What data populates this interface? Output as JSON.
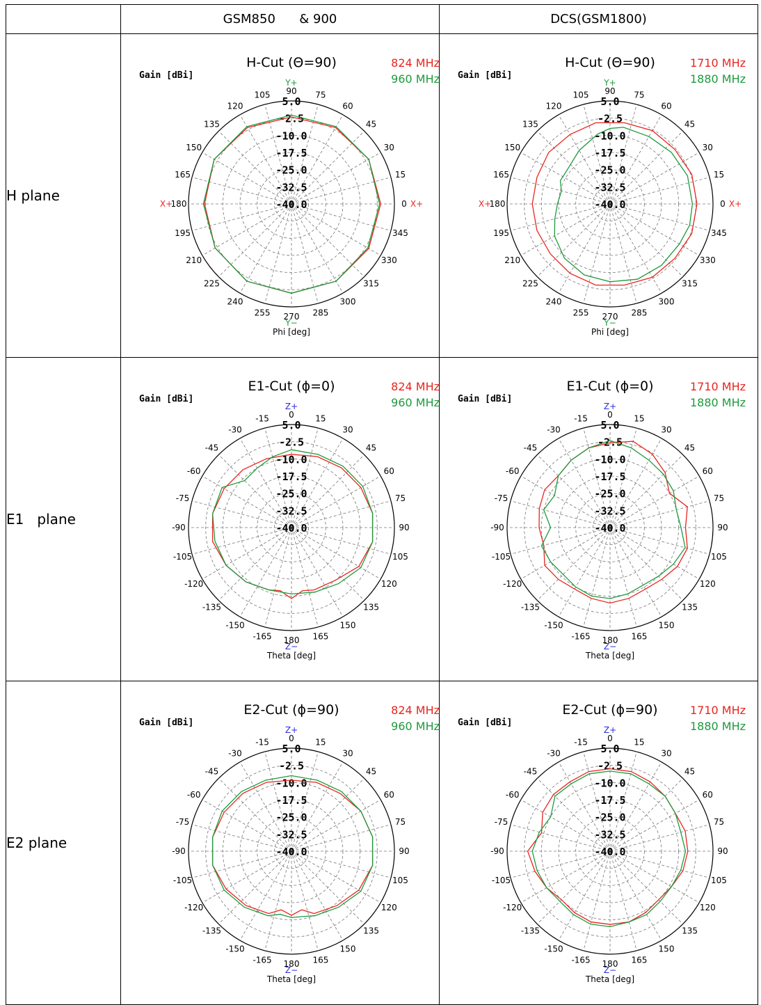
{
  "headers": [
    "",
    "GSM850      & 900",
    "DCS(GSM1800)"
  ],
  "rows": [
    {
      "label": "H plane"
    },
    {
      "label": "E1   plane"
    },
    {
      "label": "E2 plane"
    }
  ],
  "colors": {
    "red": "#e8241e",
    "green": "#1e9a3c",
    "blue": "#2a2ae0",
    "grid": "#777777"
  },
  "chart_data": [
    {
      "type": "polar-line",
      "title": "H-Cut (Θ=90)",
      "gain_label": "Gain [dBi]",
      "axis_label": "Phi [deg]",
      "top_marker": "Y+",
      "bottom_marker": "Y−",
      "left_marker": "X+",
      "right_marker": "X+",
      "top_marker_color": "#1e9a3c",
      "side_marker_color": "#e8241e",
      "angle_labels": [
        "0",
        "15",
        "30",
        "45",
        "60",
        "75",
        "90",
        "105",
        "120",
        "135",
        "150",
        "165",
        "180",
        "195",
        "210",
        "225",
        "240",
        "255",
        "270",
        "285",
        "300",
        "315",
        "330",
        "345"
      ],
      "angle_mode": "phi",
      "radial_ticks": [
        "5.0",
        "-2.5",
        "-10.0",
        "-17.5",
        "-25.0",
        "-32.5",
        "-40.0"
      ],
      "rlim": [
        -40,
        5
      ],
      "series": [
        {
          "name": "824 MHz",
          "color": "#e8241e",
          "angles": [
            0,
            30,
            60,
            90,
            120,
            150,
            180,
            210,
            240,
            270,
            300,
            330,
            360
          ],
          "values": [
            -1,
            -1,
            -1.5,
            -2,
            -1.5,
            -1,
            -2,
            -1.5,
            -1,
            -1,
            -1,
            -1,
            -1
          ]
        },
        {
          "name": "960 MHz",
          "color": "#1e9a3c",
          "angles": [
            0,
            30,
            60,
            90,
            120,
            150,
            180,
            210,
            240,
            270,
            300,
            330,
            360
          ],
          "values": [
            -1.5,
            -1,
            -1,
            -1.2,
            -1,
            -1,
            -1.5,
            -1.5,
            -1,
            -1,
            -1,
            -1.5,
            -1.5
          ]
        }
      ]
    },
    {
      "type": "polar-line",
      "title": "H-Cut (Θ=90)",
      "gain_label": "Gain [dBi]",
      "axis_label": "Phi [deg]",
      "top_marker": "Y+",
      "bottom_marker": "Y−",
      "left_marker": "X+",
      "right_marker": "X+",
      "top_marker_color": "#1e9a3c",
      "side_marker_color": "#e8241e",
      "angle_labels": [
        "0",
        "15",
        "30",
        "45",
        "60",
        "75",
        "90",
        "105",
        "120",
        "135",
        "150",
        "165",
        "180",
        "195",
        "210",
        "225",
        "240",
        "255",
        "270",
        "285",
        "300",
        "315",
        "330",
        "345"
      ],
      "angle_mode": "phi",
      "radial_ticks": [
        "5.0",
        "-2.5",
        "-10.0",
        "-17.5",
        "-25.0",
        "-32.5",
        "-40.0"
      ],
      "rlim": [
        -40,
        5
      ],
      "series": [
        {
          "name": "1710 MHz",
          "color": "#e8241e",
          "angles": [
            0,
            20,
            40,
            60,
            80,
            100,
            120,
            140,
            160,
            180,
            200,
            220,
            240,
            260,
            280,
            300,
            320,
            340,
            360
          ],
          "values": [
            -2,
            -2,
            -3,
            -3,
            -4,
            -4,
            -5,
            -5,
            -6,
            -6,
            -6,
            -6,
            -5,
            -4,
            -4,
            -3,
            -3,
            -2,
            -2
          ]
        },
        {
          "name": "1880 MHz",
          "color": "#1e9a3c",
          "angles": [
            0,
            20,
            40,
            60,
            80,
            90,
            100,
            120,
            140,
            155,
            165,
            180,
            195,
            210,
            230,
            250,
            270,
            290,
            310,
            330,
            345,
            360
          ],
          "values": [
            -4,
            -4,
            -5,
            -6,
            -6,
            -7,
            -9,
            -13,
            -16,
            -16,
            -18,
            -17,
            -15,
            -12,
            -9,
            -7,
            -6,
            -5,
            -5,
            -5,
            -4,
            -4
          ]
        }
      ]
    },
    {
      "type": "polar-line",
      "title": "E1-Cut (ϕ=0)",
      "gain_label": "Gain [dBi]",
      "axis_label": "Theta [deg]",
      "top_marker": "Z+",
      "bottom_marker": "Z−",
      "top_marker_color": "#2a2ae0",
      "angle_labels": [
        "-15",
        "0",
        "15",
        "30",
        "45",
        "60",
        "75",
        "90",
        "105",
        "120",
        "135",
        "150",
        "165",
        "180",
        "-165",
        "-150",
        "-135",
        "-120",
        "-105",
        "-90",
        "-75",
        "-60",
        "-45",
        "-30"
      ],
      "angle_mode": "theta",
      "radial_ticks": [
        "5.0",
        "-2.5",
        "-10.0",
        "-17.5",
        "-25.0",
        "-32.5",
        "-40.0"
      ],
      "rlim": [
        -40,
        5
      ],
      "series": [
        {
          "name": "824 MHz",
          "color": "#e8241e",
          "angles": [
            0,
            20,
            40,
            60,
            80,
            100,
            120,
            140,
            160,
            170,
            180,
            190,
            200,
            220,
            240,
            260,
            280,
            300,
            320,
            340,
            360
          ],
          "values": [
            -8,
            -7,
            -6,
            -5,
            -4,
            -4,
            -6,
            -10,
            -11,
            -12,
            -9,
            -12,
            -11,
            -9,
            -7,
            -5,
            -5,
            -6,
            -7,
            -8,
            -8
          ]
        },
        {
          "name": "960 MHz",
          "color": "#1e9a3c",
          "angles": [
            0,
            20,
            40,
            60,
            80,
            100,
            120,
            140,
            160,
            180,
            200,
            220,
            240,
            260,
            280,
            300,
            315,
            330,
            345,
            360
          ],
          "values": [
            -6,
            -6,
            -5,
            -4,
            -4,
            -4,
            -5,
            -8,
            -10,
            -11,
            -11,
            -9,
            -7,
            -6,
            -5,
            -5,
            -11,
            -10,
            -8,
            -6
          ]
        }
      ]
    },
    {
      "type": "polar-line",
      "title": "E1-Cut (ϕ=0)",
      "gain_label": "Gain [dBi]",
      "axis_label": "Theta [deg]",
      "top_marker": "Z+",
      "bottom_marker": "Z−",
      "top_marker_color": "#2a2ae0",
      "angle_labels": [
        "-15",
        "0",
        "15",
        "30",
        "45",
        "60",
        "75",
        "90",
        "105",
        "120",
        "135",
        "150",
        "165",
        "180",
        "-165",
        "-150",
        "-135",
        "-120",
        "-105",
        "-90",
        "-75",
        "-60",
        "-45",
        "-30"
      ],
      "angle_mode": "theta",
      "radial_ticks": [
        "5.0",
        "-2.5",
        "-10.0",
        "-17.5",
        "-25.0",
        "-32.5",
        "-40.0"
      ],
      "rlim": [
        -40,
        5
      ],
      "series": [
        {
          "name": "1710 MHz",
          "color": "#e8241e",
          "angles": [
            0,
            15,
            30,
            45,
            60,
            75,
            90,
            105,
            120,
            135,
            150,
            165,
            180,
            195,
            210,
            225,
            240,
            255,
            270,
            285,
            300,
            315,
            330,
            345,
            360
          ],
          "values": [
            -3,
            -1,
            -3,
            -6,
            -10,
            -5,
            -7,
            -5,
            -6,
            -8,
            -9,
            -8,
            -7,
            -8,
            -9,
            -8,
            -7,
            -10,
            -9,
            -8,
            -7,
            -8,
            -6,
            -4,
            -3
          ]
        },
        {
          "name": "1880 MHz",
          "color": "#1e9a3c",
          "angles": [
            0,
            15,
            30,
            45,
            60,
            75,
            90,
            105,
            120,
            135,
            150,
            165,
            180,
            195,
            210,
            225,
            240,
            255,
            270,
            285,
            300,
            315,
            330,
            345,
            360
          ],
          "values": [
            -2,
            -4,
            -6,
            -7,
            -8,
            -10,
            -9,
            -6,
            -8,
            -10,
            -11,
            -10,
            -9,
            -9,
            -10,
            -11,
            -10,
            -9,
            -14,
            -10,
            -12,
            -8,
            -6,
            -4,
            -2
          ]
        }
      ]
    },
    {
      "type": "polar-line",
      "title": "E2-Cut (ϕ=90)",
      "gain_label": "Gain [dBi]",
      "axis_label": "Theta [deg]",
      "top_marker": "Z+",
      "bottom_marker": "Z−",
      "top_marker_color": "#2a2ae0",
      "angle_labels": [
        "-15",
        "0",
        "15",
        "30",
        "45",
        "60",
        "75",
        "90",
        "105",
        "120",
        "135",
        "150",
        "165",
        "180",
        "-165",
        "-150",
        "-135",
        "-120",
        "-105",
        "-90",
        "-75",
        "-60",
        "-45",
        "-30"
      ],
      "angle_mode": "theta",
      "radial_ticks": [
        "5.0",
        "-2.5",
        "-10.0",
        "-17.5",
        "-25.0",
        "-32.5",
        "-40.0"
      ],
      "rlim": [
        -40,
        5
      ],
      "series": [
        {
          "name": "824 MHz",
          "color": "#e8241e",
          "angles": [
            0,
            20,
            40,
            60,
            80,
            100,
            120,
            140,
            160,
            170,
            180,
            190,
            200,
            220,
            240,
            260,
            280,
            300,
            320,
            340,
            360
          ],
          "values": [
            -9,
            -8,
            -7,
            -5,
            -4,
            -4,
            -6,
            -9,
            -11,
            -14,
            -12,
            -14,
            -11,
            -9,
            -7,
            -5,
            -5,
            -6,
            -7,
            -8,
            -9
          ]
        },
        {
          "name": "960 MHz",
          "color": "#1e9a3c",
          "angles": [
            0,
            20,
            40,
            60,
            80,
            100,
            120,
            140,
            160,
            170,
            180,
            190,
            200,
            220,
            240,
            260,
            280,
            300,
            320,
            340,
            360
          ],
          "values": [
            -7,
            -7,
            -6,
            -5,
            -4,
            -4,
            -5,
            -8,
            -10,
            -11,
            -11,
            -12,
            -10,
            -8,
            -6,
            -5,
            -5,
            -5,
            -6,
            -7,
            -7
          ]
        }
      ]
    },
    {
      "type": "polar-line",
      "title": "E2-Cut (ϕ=90)",
      "gain_label": "Gain [dBi]",
      "axis_label": "Theta [deg]",
      "top_marker": "Z+",
      "bottom_marker": "Z−",
      "top_marker_color": "#2a2ae0",
      "angle_labels": [
        "-15",
        "0",
        "15",
        "30",
        "45",
        "60",
        "75",
        "90",
        "105",
        "120",
        "135",
        "150",
        "165",
        "180",
        "-165",
        "-150",
        "-135",
        "-120",
        "-105",
        "-90",
        "-75",
        "-60",
        "-45",
        "-30"
      ],
      "angle_mode": "theta",
      "radial_ticks": [
        "5.0",
        "-2.5",
        "-10.0",
        "-17.5",
        "-25.0",
        "-32.5",
        "-40.0"
      ],
      "rlim": [
        -40,
        5
      ],
      "series": [
        {
          "name": "1710 MHz",
          "color": "#e8241e",
          "angles": [
            0,
            15,
            30,
            45,
            60,
            75,
            90,
            105,
            120,
            135,
            150,
            165,
            180,
            195,
            210,
            225,
            240,
            255,
            270,
            285,
            300,
            315,
            330,
            345,
            360
          ],
          "values": [
            -4,
            -4,
            -5,
            -6,
            -7,
            -6,
            -6,
            -7,
            -9,
            -10,
            -9,
            -8,
            -8,
            -8,
            -9,
            -10,
            -8,
            -6,
            -4,
            -9,
            -6,
            -5,
            -5,
            -4,
            -4
          ]
        },
        {
          "name": "1880 MHz",
          "color": "#1e9a3c",
          "angles": [
            0,
            15,
            30,
            45,
            60,
            75,
            90,
            105,
            120,
            135,
            150,
            165,
            180,
            195,
            210,
            225,
            240,
            255,
            270,
            285,
            300,
            315,
            330,
            345,
            360
          ],
          "values": [
            -5,
            -5,
            -6,
            -6,
            -7,
            -8,
            -7,
            -8,
            -9,
            -9,
            -8,
            -8,
            -7,
            -7,
            -8,
            -9,
            -8,
            -7,
            -6,
            -8,
            -10,
            -6,
            -6,
            -5,
            -5
          ]
        }
      ]
    }
  ]
}
